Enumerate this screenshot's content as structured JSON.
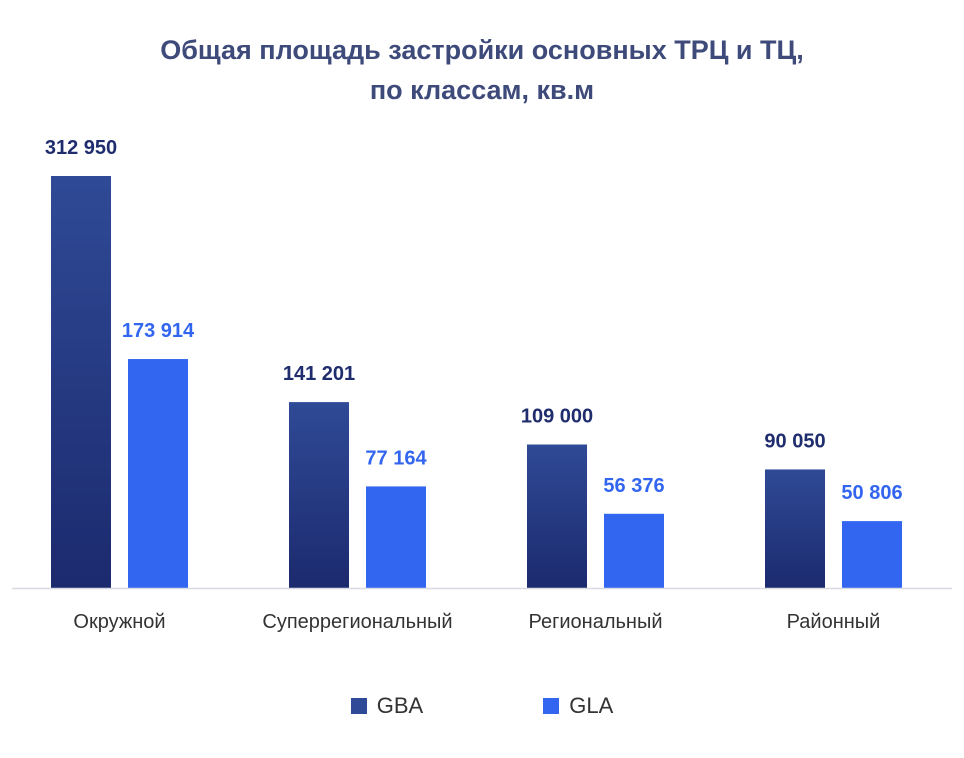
{
  "title": {
    "line1": "Общая площадь застройки основных ТРЦ и ТЦ,",
    "line2": "по классам, кв.м"
  },
  "colors": {
    "gba_top": "#2f4a96",
    "gba_bottom": "#1c2a6e",
    "gla": "#3366f0",
    "gba_label": "#1f2d6e",
    "gla_label": "#3366f0",
    "axis": "#d9dbe3",
    "category_text": "#333333"
  },
  "chart_data": {
    "type": "bar",
    "categories": [
      "Окружной",
      "Суперрегиональный",
      "Региональный",
      "Районный"
    ],
    "series": [
      {
        "name": "GBA",
        "values": [
          312950,
          141201,
          109000,
          90050
        ],
        "labels": [
          "312 950",
          "141 201",
          "109 000",
          "90 050"
        ]
      },
      {
        "name": "GLA",
        "values": [
          173914,
          77164,
          56376,
          50806
        ],
        "labels": [
          "173 914",
          "77 164",
          "56 376",
          "50 806"
        ]
      }
    ],
    "title": "Общая площадь застройки основных ТРЦ и ТЦ, по классам, кв.м",
    "ylim": [
      0,
      312950
    ],
    "grid": false,
    "legend": "bottom"
  }
}
